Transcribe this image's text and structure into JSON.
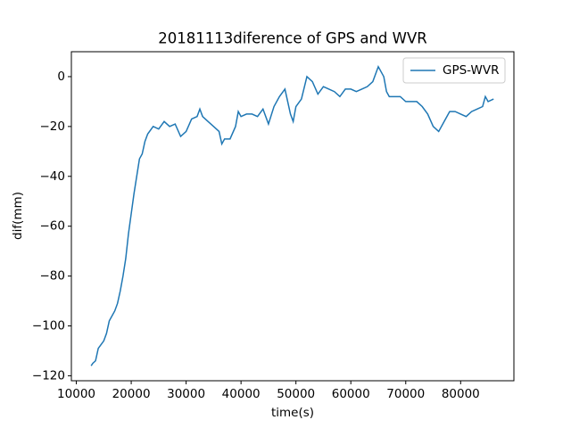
{
  "chart_data": {
    "type": "line",
    "title": "20181113diference of GPS and WVR",
    "x_label": "time(s)",
    "y_label": "dif(mm)",
    "x": [
      12700,
      13000,
      13500,
      14000,
      15000,
      15500,
      16000,
      17000,
      17500,
      18000,
      18500,
      19000,
      19500,
      20000,
      20500,
      21000,
      21500,
      22000,
      22500,
      23000,
      24000,
      25000,
      26000,
      27000,
      28000,
      29000,
      30000,
      31000,
      32000,
      32500,
      33000,
      34000,
      35000,
      36000,
      36500,
      37000,
      38000,
      39000,
      39500,
      40000,
      41000,
      42000,
      43000,
      44000,
      45000,
      46000,
      47000,
      48000,
      48500,
      49000,
      49500,
      50000,
      51000,
      52000,
      53000,
      54000,
      55000,
      56000,
      57000,
      58000,
      59000,
      60000,
      61000,
      62000,
      63000,
      64000,
      65000,
      66000,
      66500,
      67000,
      68000,
      69000,
      70000,
      71000,
      72000,
      73000,
      74000,
      75000,
      76000,
      77000,
      78000,
      79000,
      80000,
      81000,
      82000,
      83000,
      84000,
      84500,
      85000,
      86000
    ],
    "series": [
      {
        "name": "GPS-WVR",
        "color": "#1f77b4",
        "values": [
          -116,
          -115,
          -114,
          -109,
          -106,
          -103,
          -98,
          -94,
          -91,
          -86,
          -80,
          -73,
          -63,
          -55,
          -47,
          -40,
          -33,
          -31,
          -26,
          -23,
          -20,
          -21,
          -18,
          -20,
          -19,
          -24,
          -22,
          -17,
          -16,
          -13,
          -16,
          -18,
          -20,
          -22,
          -27,
          -25,
          -25,
          -20,
          -14,
          -16,
          -15,
          -15,
          -16,
          -13,
          -19,
          -12,
          -8,
          -5,
          -10,
          -15,
          -18,
          -12,
          -9,
          0,
          -2,
          -7,
          -4,
          -5,
          -6,
          -8,
          -5,
          -5,
          -6,
          -5,
          -4,
          -2,
          4,
          0,
          -6,
          -8,
          -8,
          -8,
          -10,
          -10,
          -10,
          -12,
          -15,
          -20,
          -22,
          -18,
          -14,
          -14,
          -15,
          -16,
          -14,
          -13,
          -12,
          -8,
          -10,
          -9
        ]
      }
    ],
    "xlim": [
      9100,
      89700
    ],
    "ylim": [
      -122,
      10
    ],
    "xticks": [
      10000,
      20000,
      30000,
      40000,
      50000,
      60000,
      70000,
      80000
    ],
    "yticks": [
      {
        "value": -120,
        "label": "−120"
      },
      {
        "value": -100,
        "label": "−100"
      },
      {
        "value": -80,
        "label": "−80"
      },
      {
        "value": -60,
        "label": "−60"
      },
      {
        "value": -40,
        "label": "−40"
      },
      {
        "value": -20,
        "label": "−20"
      },
      0
    ],
    "legend": "upper right"
  }
}
